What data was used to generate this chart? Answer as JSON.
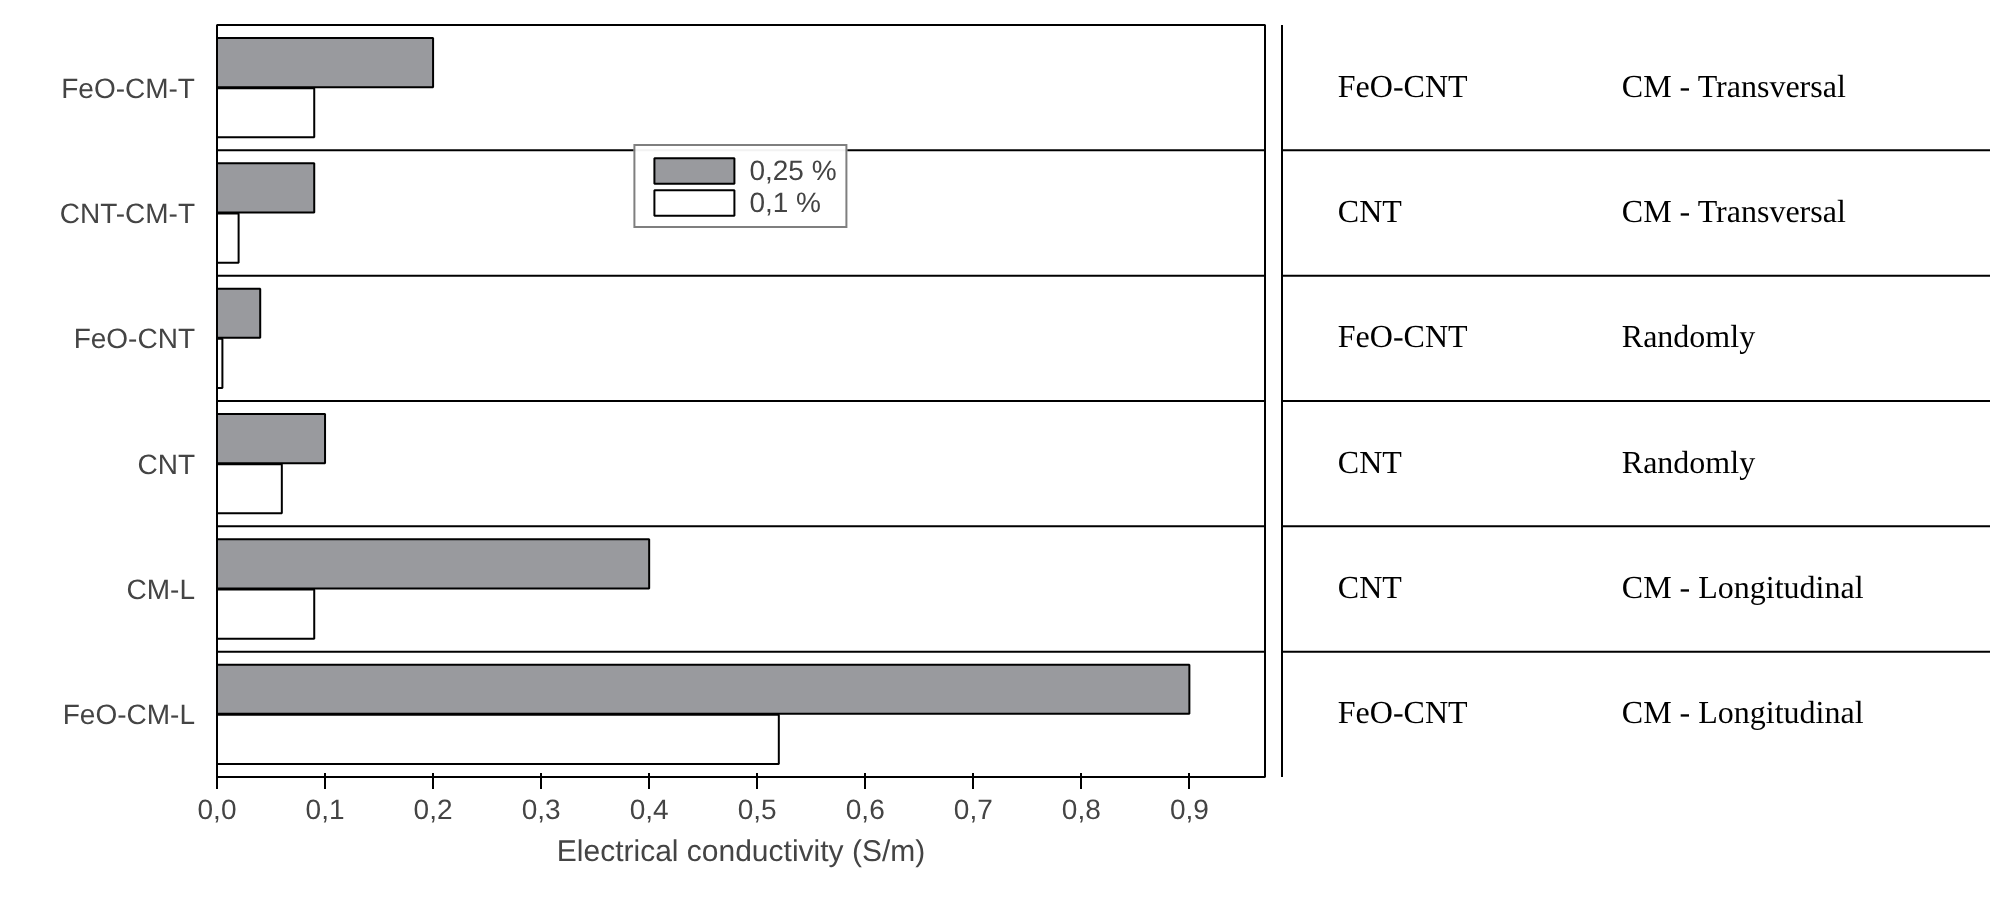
{
  "chart_data": {
    "type": "bar",
    "orientation": "horizontal",
    "xlabel": "Electrical conductivity (S/m)",
    "categories": [
      "FeO-CM-T",
      "CNT-CM-T",
      "FeO-CNT",
      "CNT",
      "CM-L",
      "FeO-CM-L"
    ],
    "series": [
      {
        "name": "0,25 %",
        "color": "#999a9e",
        "values": [
          0.2,
          0.09,
          0.04,
          0.1,
          0.4,
          0.9
        ]
      },
      {
        "name": "0,1 %",
        "color": "#ffffff",
        "values": [
          0.09,
          0.02,
          0.005,
          0.06,
          0.09,
          0.52
        ]
      }
    ],
    "xlim": [
      0,
      0.97
    ],
    "xticks": [
      {
        "value": 0,
        "label": "0,0"
      },
      {
        "value": 0.1,
        "label": "0,1"
      },
      {
        "value": 0.2,
        "label": "0,2"
      },
      {
        "value": 0.3,
        "label": "0,3"
      },
      {
        "value": 0.4,
        "label": "0,4"
      },
      {
        "value": 0.5,
        "label": "0,5"
      },
      {
        "value": 0.6,
        "label": "0,6"
      },
      {
        "value": 0.7,
        "label": "0,7"
      },
      {
        "value": 0.8,
        "label": "0,8"
      },
      {
        "value": 0.9,
        "label": "0,9"
      }
    ],
    "legend": "top center",
    "grid": false,
    "annotations": [
      "FeO-CNT",
      "CM - Transversal",
      "CNT",
      "CM - Transversal",
      "FeO-CNT",
      "Randomly",
      "CNT",
      "Randomly",
      "CNT",
      "CM - Longitudinal",
      "FeO-CNT",
      "CM - Longitudinal"
    ]
  }
}
